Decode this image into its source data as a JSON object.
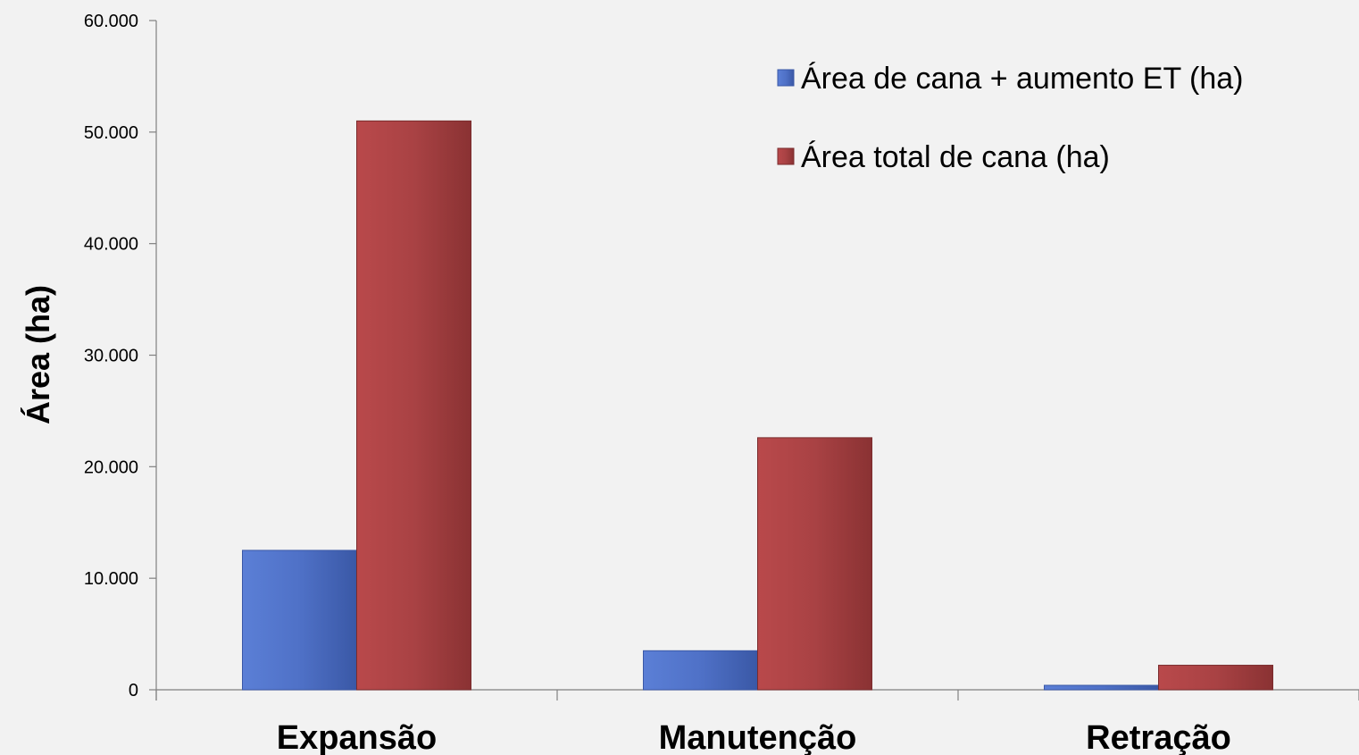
{
  "chart_data": {
    "type": "bar",
    "title": "",
    "xlabel": "",
    "ylabel": "Área (ha)",
    "ylim": [
      0,
      60000
    ],
    "yticks": [
      0,
      10000,
      20000,
      30000,
      40000,
      50000,
      60000
    ],
    "ytick_labels": [
      "0",
      "10.000",
      "20.000",
      "30.000",
      "40.000",
      "50.000",
      "60.000"
    ],
    "categories": [
      "Expansão",
      "Manutenção",
      "Retração"
    ],
    "series": [
      {
        "name": "Área de cana + aumento ET (ha)",
        "values": [
          12500,
          3500,
          400
        ],
        "color": "#4f71c7"
      },
      {
        "name": "Área total de cana (ha)",
        "values": [
          51000,
          22600,
          2200
        ],
        "color": "#a94244"
      }
    ],
    "legend_position": "top-right",
    "grid": false,
    "background": "#f2f2f2"
  }
}
